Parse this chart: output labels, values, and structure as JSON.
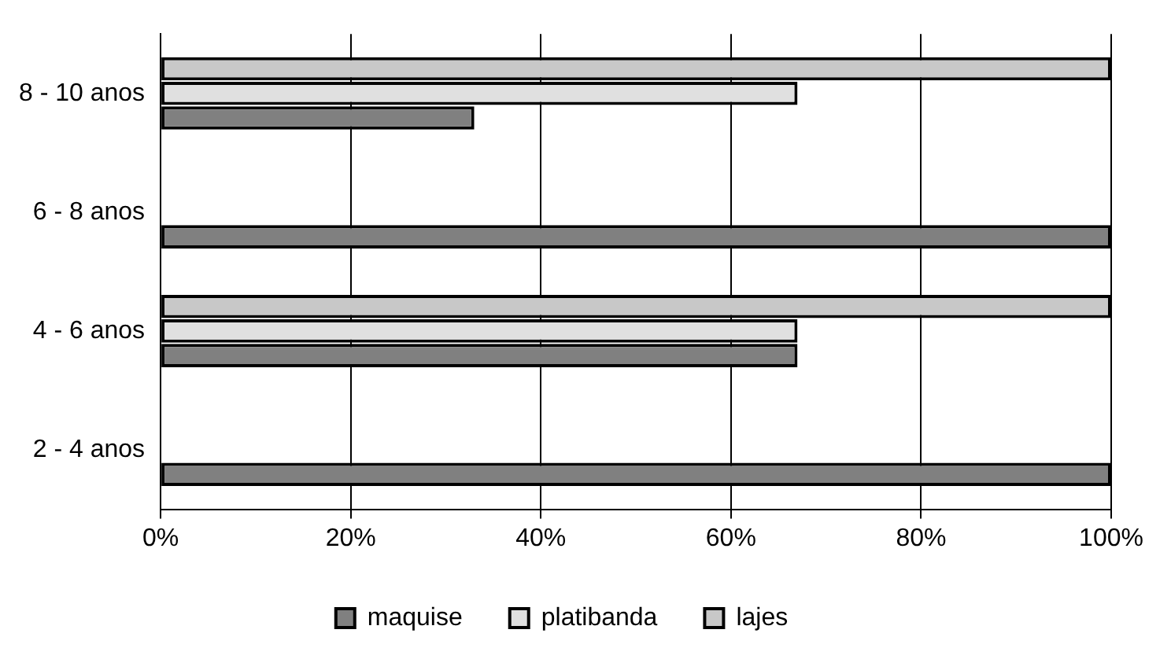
{
  "chart_data": {
    "type": "bar",
    "orientation": "horizontal",
    "categories": [
      "8 - 10 anos",
      "6 - 8 anos",
      "4 - 6 anos",
      "2 - 4 anos"
    ],
    "series": [
      {
        "name": "maquise",
        "color": "#808080",
        "values": [
          33,
          100,
          67,
          100
        ]
      },
      {
        "name": "platibanda",
        "color": "#e0e0e0",
        "values": [
          67,
          null,
          67,
          null
        ]
      },
      {
        "name": "lajes",
        "color": "#c8c8c8",
        "values": [
          100,
          null,
          100,
          null
        ]
      }
    ],
    "xlim": [
      0,
      100
    ],
    "xticks": [
      {
        "value": 0,
        "label": "0%"
      },
      {
        "value": 20,
        "label": "20%"
      },
      {
        "value": 40,
        "label": "40%"
      },
      {
        "value": 60,
        "label": "60%"
      },
      {
        "value": 80,
        "label": "80%"
      },
      {
        "value": 100,
        "label": "100%"
      }
    ],
    "grid": "x",
    "legend": "bottom"
  }
}
